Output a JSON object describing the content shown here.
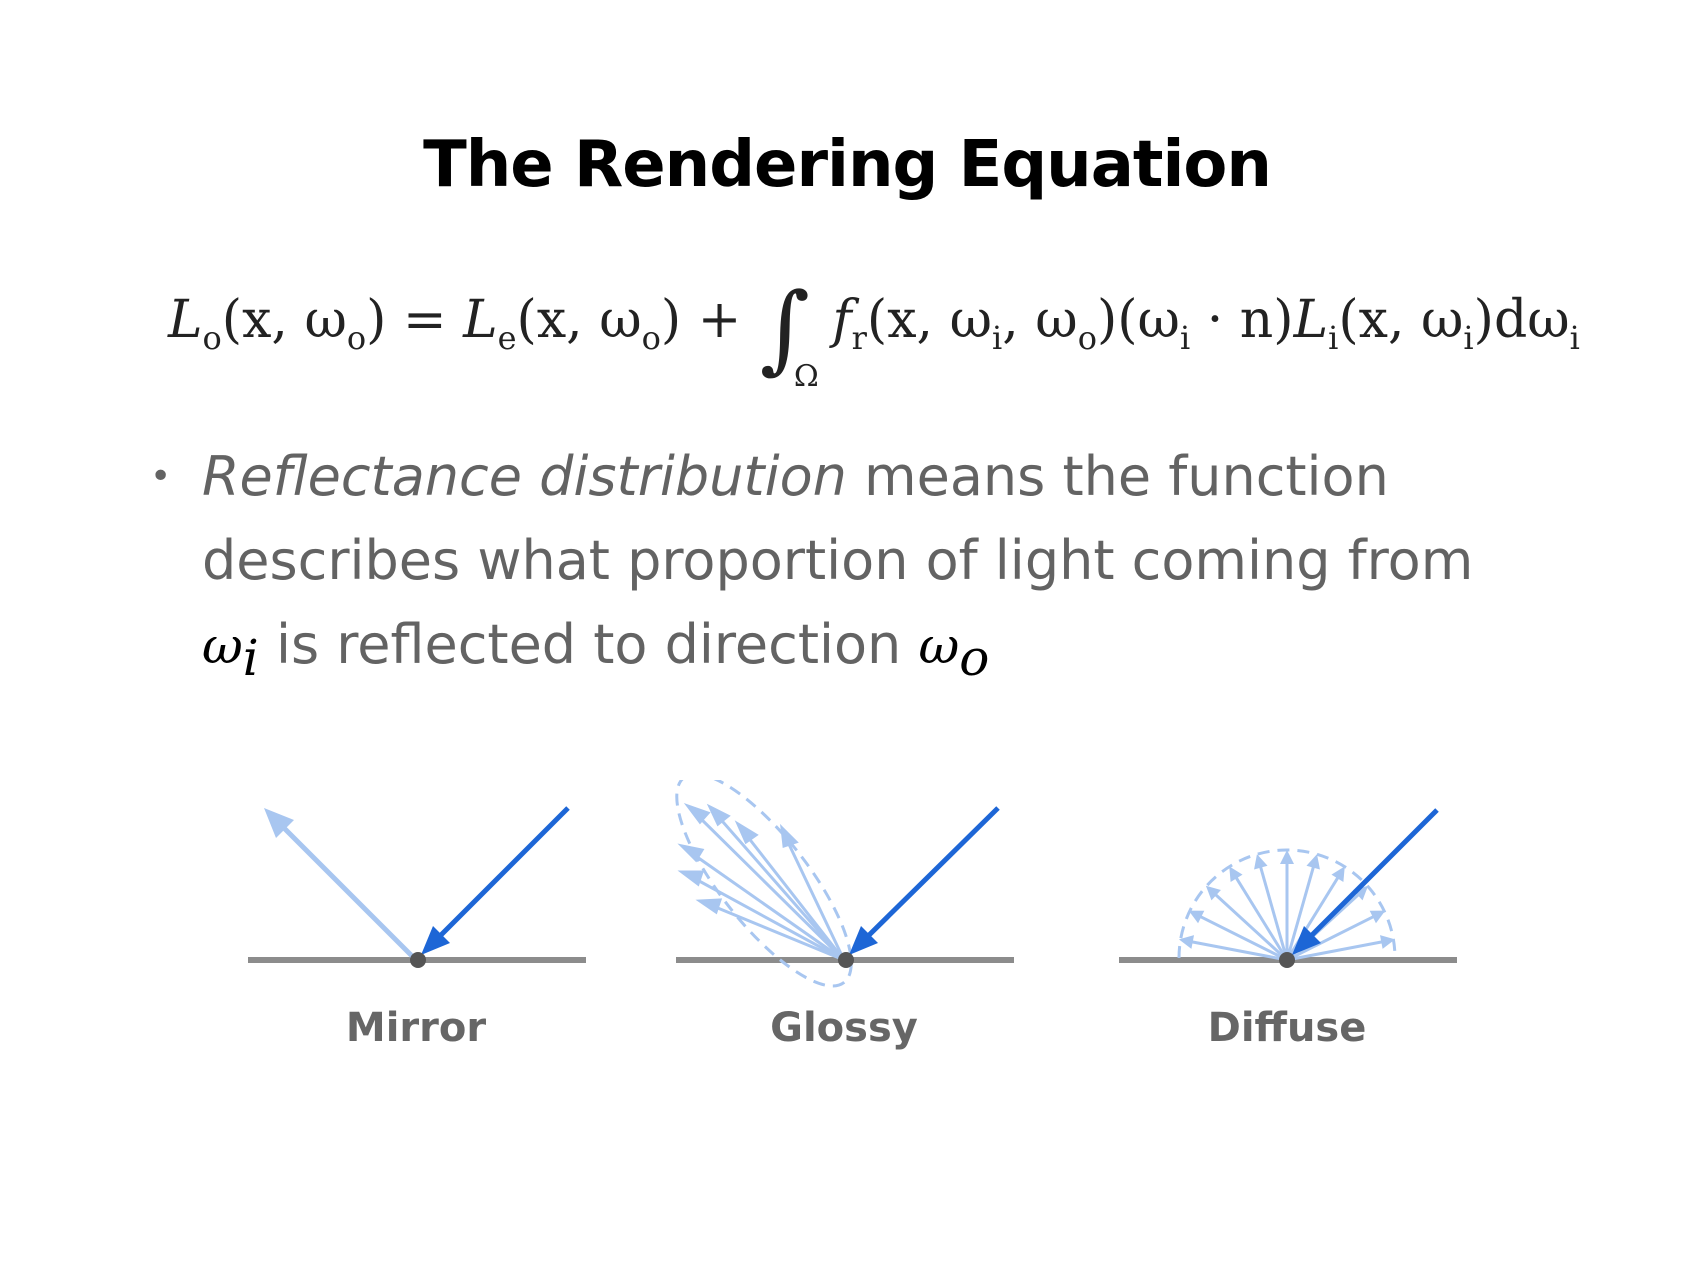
{
  "title": "The Rendering Equation",
  "equation": {
    "lhs": "L",
    "lhs_sub": "o",
    "lhs_args": "(x, ω",
    "lhs_args_sub": "o",
    "lhs_close": ")",
    "eq": "=",
    "le": "L",
    "le_sub": "e",
    "le_args": "(x, ω",
    "le_args_sub": "o",
    "le_close": ")",
    "plus": "+",
    "integral": "∫",
    "domain": "Ω",
    "fr": "f",
    "fr_sub": "r",
    "fr_args_1": "(x, ω",
    "fr_args_1_sub": "i",
    "fr_args_2": ", ω",
    "fr_args_2_sub": "o",
    "fr_close": ")",
    "dot_open": "(ω",
    "dot_open_sub": "i",
    "dot_mid": " · n)",
    "li": "L",
    "li_sub": "i",
    "li_args": "(x, ω",
    "li_args_sub": "i",
    "li_close": ")dω",
    "li_close_sub": "i"
  },
  "bullet": {
    "marker": "•",
    "emphasis": "Reflectance distribution",
    "text_1": " means the function",
    "text_2": "describes what proportion of light coming from",
    "omega_i": "ω",
    "omega_i_sub": "i",
    "text_3": " is reflected to direction ",
    "omega_o": "ω",
    "omega_o_sub": "o"
  },
  "diagrams": {
    "mirror": "Mirror",
    "glossy": "Glossy",
    "diffuse": "Diffuse"
  },
  "colors": {
    "incoming": "#1d66d6",
    "reflected": "#a8c6f0",
    "surface": "#8c8c8c",
    "point": "#555555"
  }
}
